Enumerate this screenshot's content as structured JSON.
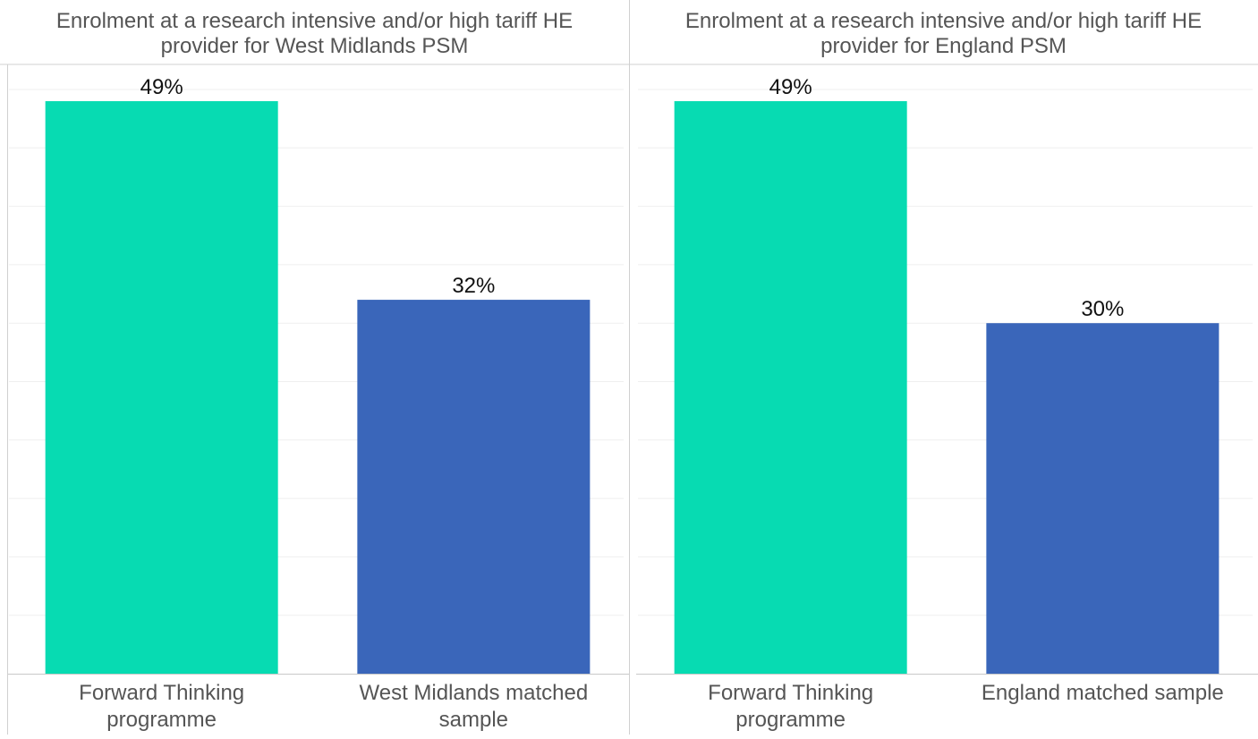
{
  "chart_data": [
    {
      "type": "bar",
      "title_lines": [
        "Enrolment at a research intensive and/or high tariff HE",
        "provider for West Midlands PSM"
      ],
      "categories": [
        {
          "label_lines": [
            "Forward Thinking",
            "programme"
          ]
        },
        {
          "label_lines": [
            "West Midlands matched",
            "sample"
          ]
        }
      ],
      "values": [
        49,
        32
      ],
      "value_labels": [
        "49%",
        "32%"
      ],
      "bar_colors": [
        "#07DBB2",
        "#3A66BA"
      ],
      "ylim": [
        0,
        50
      ],
      "grid": true
    },
    {
      "type": "bar",
      "title_lines": [
        "Enrolment at a research intensive and/or high tariff HE",
        "provider for England PSM"
      ],
      "categories": [
        {
          "label_lines": [
            "Forward Thinking",
            "programme"
          ]
        },
        {
          "label_lines": [
            "England matched sample"
          ]
        }
      ],
      "values": [
        49,
        30
      ],
      "value_labels": [
        "49%",
        "30%"
      ],
      "bar_colors": [
        "#07DBB2",
        "#3A66BA"
      ],
      "ylim": [
        0,
        50
      ],
      "grid": true
    }
  ]
}
